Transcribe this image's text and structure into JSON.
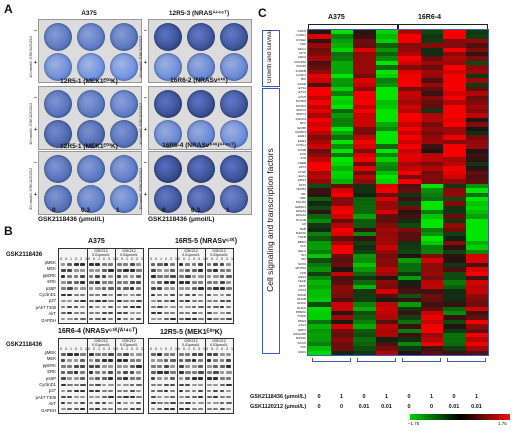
{
  "panelA": {
    "letter": "A",
    "plates": [
      {
        "title": "A375",
        "side": "10 nmol/L GSK1120212",
        "density": [
          0.55,
          0.5,
          0.55,
          0.35,
          0.3,
          0.3
        ]
      },
      {
        "title": "12R5-3 (NRASᴬ¹⁴⁶ᵀ)",
        "side": "10 nmol/L GSK1120212",
        "density": [
          0.9,
          0.85,
          0.85,
          0.35,
          0.4,
          0.4
        ]
      },
      {
        "title": "12R5-1 (MEK1ᴱ⁰³K)",
        "side": "10 nmol/L GSK1120212",
        "density": [
          0.6,
          0.55,
          0.5,
          0.7,
          0.65,
          0.6
        ]
      },
      {
        "title": "16R6-2 (NRASᴠ⁶¹ᴷ)",
        "side": "10 nmol/L GSK1120212",
        "density": [
          0.9,
          0.9,
          0.85,
          0.4,
          0.4,
          0.35
        ]
      },
      {
        "title": "12R5-1 (MEK1ᴱ⁰³K)",
        "side": "30 nmol/L GSK1120212",
        "density": [
          0.6,
          0.55,
          0.5,
          0.6,
          0.5,
          0.45
        ]
      },
      {
        "title": "16R6-4 (NRASᴠ⁶¹ᴷ/ᴬ¹⁴⁶ᵀ)",
        "side": "10 nmol/L GSK1120212",
        "density": [
          0.95,
          0.9,
          0.9,
          0.85,
          0.8,
          0.75
        ]
      }
    ],
    "minus": "–",
    "plus": "+",
    "doses": [
      "0",
      "0.3",
      "1"
    ],
    "xlabel": "GSK2118436 (μmol/L)"
  },
  "panelB": {
    "letter": "B",
    "gsk_label": "GSK2118436",
    "rows": [
      "pMEK",
      "MEK",
      "ppERK",
      "ERK",
      "pS6P",
      "CyclinD1",
      "p27",
      "pAkT T308",
      "AkT",
      "GAPDH"
    ],
    "blots": [
      {
        "title": "A375",
        "heads": [
          "",
          "GSK212 0.01μmol/L",
          "GSK212 0.03μmol/L"
        ],
        "lanes": "0 0.1 0.3 1"
      },
      {
        "title": "16R5-5 (NRASᴠ⁶¹ᴷ)",
        "heads": [
          "",
          "GSK212 0.01μmol/L",
          "GSK212 0.03μmol/L"
        ],
        "lanes": "0 0.1 0.3 1"
      },
      {
        "title": "16R6-4 (NRASᴠ⁶¹ᴷ/ᴬ¹⁴⁶ᵀ)",
        "heads": [
          "",
          "GSK212 0.01μmol/L",
          "GSK212 0.03μmol/L"
        ],
        "lanes": "0 0.1 0.3 1"
      },
      {
        "title": "12R5-5 (MEK1ᴱ⁰³K)",
        "heads": [
          "",
          "GSK212 0.01μmol/L",
          "GSK212 0.03μmol/L"
        ],
        "lanes": "0 0.1 0.3 1"
      }
    ]
  },
  "panelC": {
    "letter": "C",
    "groups": [
      "A375",
      "16R6-4"
    ],
    "row_groups": [
      "Growth and survival",
      "Cell signaling and transcription factors"
    ],
    "genes_growth": [
      "CDKN",
      "CCND1",
      "CCNE2",
      "CDK",
      "MCL1",
      "MYC",
      "CDC6",
      "CDC25A",
      "CDC25",
      "AURKB",
      "CASP1",
      "BIK",
      "GADD"
    ],
    "genes_signal": [
      "ETS1",
      "ETV4",
      "ETV5",
      "DUSP6",
      "DUSP4",
      "SPRY2",
      "SPRY4",
      "DOCK4",
      "RFX",
      "IGFBP",
      "IGFBP3",
      "EGR1",
      "EGR3",
      "FOSL1",
      "FOSB",
      "FOS",
      "JUN",
      "CREB",
      "ATF3",
      "CTGF",
      "ELK1",
      "EDN1",
      "STAT",
      "NFKB1",
      "IRF",
      "SRF",
      "PHLDA",
      "ERRFI1",
      "EPHA2",
      "EPHA4",
      "PLAUR",
      "IL8",
      "RAB",
      "MAP2K",
      "TGFB",
      "BMP4",
      "KLF",
      "RELA",
      "ID1",
      "ID2",
      "SOX9",
      "WNT5A",
      "FZD",
      "HES1",
      "TEAD",
      "MITF",
      "PAX3",
      "SMAD",
      "RHOB",
      "RHOA",
      "RHOC",
      "PPARG",
      "TXNIP",
      "RND3",
      "CAV1",
      "NRP1",
      "RASGRP",
      "RASSF",
      "SOCS",
      "TCF",
      "GSK3"
    ],
    "cond_labels": [
      "GSK2118436 (μmol/L)",
      "GSK1120212 (μmol/L)"
    ],
    "cond_vals1": [
      "0",
      "1",
      "0",
      "1",
      "0",
      "1",
      "0",
      "1"
    ],
    "cond_vals2": [
      "0",
      "0",
      "0.01",
      "0.01",
      "0",
      "0",
      "0.01",
      "0.01"
    ],
    "scale_min": "–1.75",
    "scale_max": "1.75",
    "colors": {
      "low": "#00cc00",
      "mid": "#000000",
      "high": "#ee1111",
      "border": "#3a5fb0"
    }
  }
}
